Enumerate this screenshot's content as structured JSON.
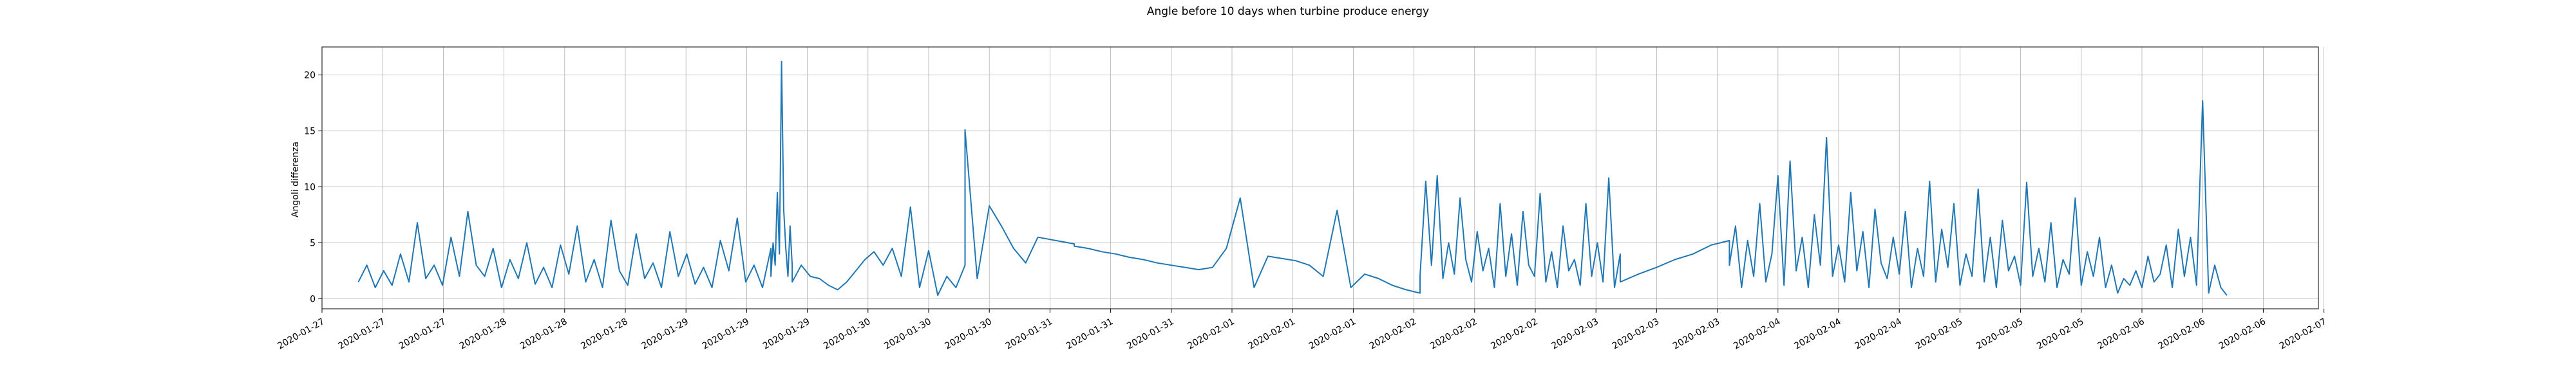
{
  "chart_data": {
    "type": "line",
    "title": "Angle before 10 days when turbine produce energy",
    "xlabel": "",
    "ylabel": "Angoli differenza",
    "grid": true,
    "ylim": [
      -0.9,
      22.5
    ],
    "y_ticks": [
      0,
      5,
      10,
      15,
      20
    ],
    "x_tick_labels": [
      "2020-01-27",
      "2020-01-27",
      "2020-01-27",
      "2020-01-28",
      "2020-01-28",
      "2020-01-28",
      "2020-01-29",
      "2020-01-29",
      "2020-01-29",
      "2020-01-30",
      "2020-01-30",
      "2020-01-30",
      "2020-01-31",
      "2020-01-31",
      "2020-01-31",
      "2020-02-01",
      "2020-02-01",
      "2020-02-01",
      "2020-02-02",
      "2020-02-02",
      "2020-02-02",
      "2020-02-03",
      "2020-02-03",
      "2020-02-03",
      "2020-02-04",
      "2020-02-04",
      "2020-02-04",
      "2020-02-05",
      "2020-02-05",
      "2020-02-05",
      "2020-02-06",
      "2020-02-06",
      "2020-02-06",
      "2020-02-07"
    ],
    "series": [
      {
        "color": "#1f77b4",
        "segments": [
          {
            "start": 0.6,
            "end": 7.4,
            "pattern": [
              1.5,
              3,
              1,
              2.5,
              1.2,
              4,
              1.5,
              6.8,
              1.8,
              3,
              1.2,
              5.5,
              2,
              7.8,
              3,
              2,
              4.5,
              1,
              3.5,
              1.8,
              5,
              1.3,
              2.8,
              1,
              4.8,
              2.2,
              6.5,
              1.5,
              3.5,
              1,
              7,
              2.5,
              1.2,
              5.8,
              1.8,
              3.2,
              1,
              6,
              2,
              4,
              1.3,
              2.8,
              1,
              5.2,
              2.5,
              7.2,
              1.5,
              3,
              1,
              4.5
            ]
          },
          {
            "start": 7.4,
            "end": 7.75,
            "pattern": [
              2,
              5,
              3,
              9.5,
              4,
              21.2,
              8,
              4.5,
              2,
              6.5,
              3
            ]
          },
          {
            "start": 7.75,
            "end": 10.6,
            "pattern": [
              1.5,
              3,
              2,
              1.8,
              1.2,
              0.8,
              1.5,
              2.5,
              3.5,
              4.2,
              3,
              4.5,
              2,
              8.2,
              1,
              4.3,
              0.3,
              2,
              1,
              3
            ]
          },
          {
            "start": 10.6,
            "end": 12.4,
            "pattern": [
              15.1,
              1.8,
              8.3,
              6.5,
              4.5,
              3.2,
              5.5,
              5.3,
              5.1,
              4.9
            ]
          },
          {
            "start": 12.4,
            "end": 18.1,
            "pattern": [
              4.7,
              4.5,
              4.2,
              4,
              3.7,
              3.5,
              3.2,
              3,
              2.8,
              2.6,
              2.8,
              4.5,
              9,
              1,
              3.8,
              3.6,
              3.4,
              3,
              2,
              7.9,
              1,
              2.2,
              1.8,
              1.2,
              0.8,
              0.5
            ]
          },
          {
            "start": 18.1,
            "end": 21.4,
            "pattern": [
              2,
              10.5,
              3,
              11,
              1.8,
              5,
              2.2,
              9,
              3.5,
              1.5,
              6,
              2.5,
              4.5,
              1,
              8.5,
              2,
              5.8,
              1.2,
              7.8,
              3,
              2,
              9.4,
              1.5,
              4.2,
              1,
              6.5,
              2.5,
              3.5,
              1.2,
              8.5,
              2,
              5,
              1.5,
              10.8,
              1,
              4
            ]
          },
          {
            "start": 21.4,
            "end": 23.2,
            "pattern": [
              1.5,
              2.2,
              2.8,
              3.5,
              4,
              4.8,
              5.2
            ]
          },
          {
            "start": 23.2,
            "end": 31.4,
            "pattern": [
              3,
              6.5,
              1,
              5.2,
              2,
              8.5,
              1.5,
              4,
              11,
              1.2,
              12.3,
              2.5,
              5.5,
              1,
              7.5,
              3,
              14.4,
              2,
              4.8,
              1.5,
              9.5,
              2.5,
              6,
              1,
              8,
              3.2,
              1.8,
              5.5,
              2.2,
              7.8,
              1,
              4.5,
              2,
              10.5,
              1.5,
              6.2,
              2.8,
              8.5,
              1.2,
              4,
              2,
              9.8,
              1.5,
              5.5,
              1,
              7,
              2.5,
              3.8,
              1.2,
              10.4,
              2,
              4.5,
              1.5,
              6.8,
              1,
              3.5,
              2.2,
              9,
              1.2,
              4.2,
              2,
              5.5,
              1,
              3,
              0.5,
              1.8,
              1.2,
              2.5,
              1,
              3.8,
              1.5,
              2.2,
              4.8,
              1,
              6.2,
              2,
              5.5,
              1.2,
              17.7,
              0.5,
              3,
              1,
              0.3
            ]
          }
        ]
      }
    ]
  }
}
